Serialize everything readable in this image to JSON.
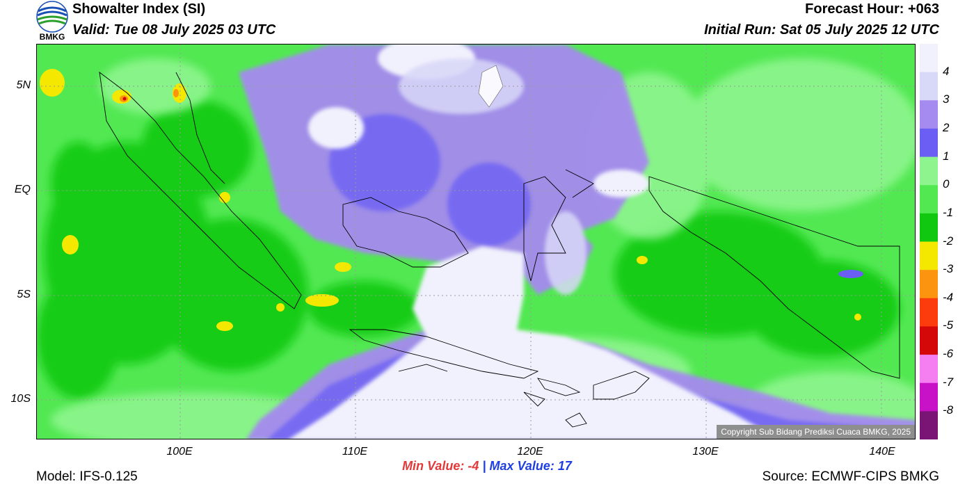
{
  "header": {
    "title": "Showalter Index (SI)",
    "valid": "Valid: Tue 08 July 2025 03 UTC",
    "forecast_hour": "Forecast Hour: +063",
    "initial_run": "Initial Run: Sat 05 July 2025 12 UTC",
    "logo_text": "BMKG"
  },
  "map": {
    "lat_labels": [
      "5N",
      "EQ",
      "5S",
      "10S"
    ],
    "lon_labels": [
      "100E",
      "110E",
      "120E",
      "130E",
      "140E"
    ],
    "copyright": "Copyright Sub Bidang Prediksi Cuaca BMKG, 2025"
  },
  "legend": {
    "labels": [
      "4",
      "3",
      "2",
      "1",
      "0",
      "-1",
      "-2",
      "-3",
      "-4",
      "-5",
      "-6",
      "-7",
      "-8"
    ],
    "colors": [
      "#f1f1fd",
      "#d8d8f8",
      "#a58af0",
      "#6b5ef5",
      "#8ef58e",
      "#52e852",
      "#10c810",
      "#f5e800",
      "#fc9410",
      "#fc3c0c",
      "#d40808",
      "#f57ff0",
      "#c812c8",
      "#7a1475"
    ]
  },
  "stats": {
    "min_label": "Min Value:",
    "min_value": "-4",
    "separator": "|",
    "max_label": "Max Value:",
    "max_value": "17"
  },
  "footer": {
    "model": "Model: IFS-0.125",
    "source": "Source: ECMWF-CIPS BMKG"
  }
}
